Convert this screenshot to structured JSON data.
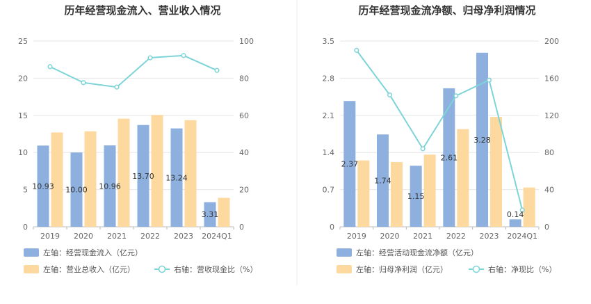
{
  "colors": {
    "bar_primary": "#8EB0DE",
    "bar_secondary": "#FDD9A0",
    "line": "#7DD4D8",
    "grid": "#E6E6E6",
    "divider": "#EEEEEE"
  },
  "chart_data": [
    {
      "type": "bar+line",
      "title": "历年经营现金流入、营业收入情况",
      "categories": [
        "2019",
        "2020",
        "2021",
        "2022",
        "2023",
        "2024Q1"
      ],
      "left_axis": {
        "min": 0,
        "max": 25,
        "ticks": [
          "0",
          "5",
          "10",
          "15",
          "20",
          "25"
        ]
      },
      "right_axis": {
        "min": 0,
        "max": 100,
        "ticks": [
          "0",
          "20",
          "40",
          "60",
          "80",
          "100"
        ]
      },
      "series": [
        {
          "name": "左轴：经营现金流入（亿元）",
          "type": "bar",
          "axis": "left",
          "values": [
            10.93,
            10.0,
            10.96,
            13.7,
            13.24,
            3.31
          ],
          "labels": [
            "10.93",
            "10.00",
            "10.96",
            "13.70",
            "13.24",
            "3.31"
          ]
        },
        {
          "name": "左轴：营业总收入（亿元）",
          "type": "bar",
          "axis": "left",
          "values": [
            12.7,
            12.85,
            14.55,
            15.05,
            14.35,
            3.9
          ]
        },
        {
          "name": "右轴：营收现金比（%）",
          "type": "line",
          "axis": "right",
          "values": [
            86.2,
            77.6,
            75.2,
            91.0,
            92.2,
            84.2
          ]
        }
      ]
    },
    {
      "type": "bar+line",
      "title": "历年经营现金流净额、归母净利润情况",
      "categories": [
        "2019",
        "2020",
        "2021",
        "2022",
        "2023",
        "2024Q1"
      ],
      "left_axis": {
        "min": 0,
        "max": 3.5,
        "ticks": [
          "0",
          "0.7",
          "1.4",
          "2.1",
          "2.8",
          "3.5"
        ]
      },
      "right_axis": {
        "min": 0,
        "max": 200,
        "ticks": [
          "0",
          "40",
          "80",
          "120",
          "160",
          "200"
        ]
      },
      "series": [
        {
          "name": "左轴：经营活动现金流净额（亿元）",
          "type": "bar",
          "axis": "left",
          "values": [
            2.37,
            1.74,
            1.15,
            2.61,
            3.28,
            0.14
          ],
          "labels": [
            "2.37",
            "1.74",
            "1.15",
            "2.61",
            "3.28",
            "0.14"
          ]
        },
        {
          "name": "左轴：归母净利润（亿元）",
          "type": "bar",
          "axis": "left",
          "values": [
            1.25,
            1.22,
            1.36,
            1.84,
            2.07,
            0.74
          ]
        },
        {
          "name": "右轴：净现比（%）",
          "type": "line",
          "axis": "right",
          "values": [
            190,
            142,
            84,
            141,
            158,
            18
          ]
        }
      ]
    }
  ]
}
